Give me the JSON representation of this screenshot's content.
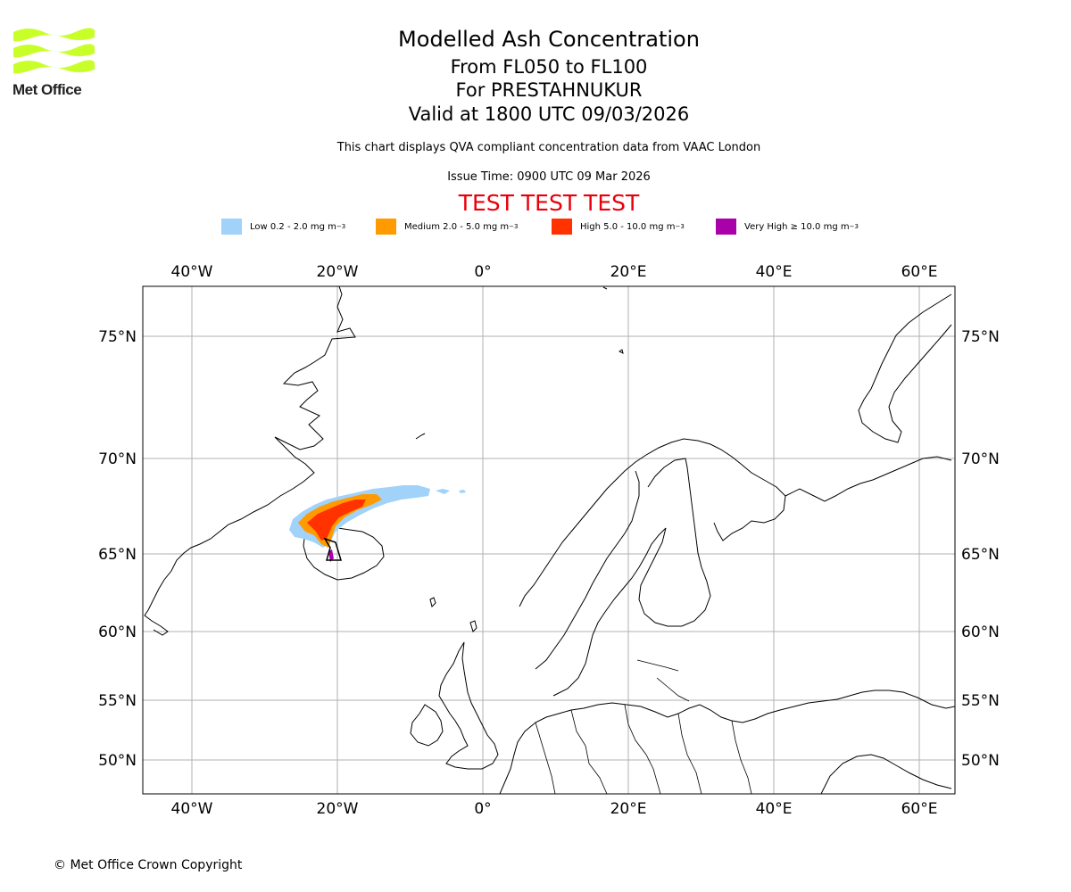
{
  "header": {
    "title": "Modelled Ash Concentration",
    "levels": "From FL050 to FL100",
    "volcano": "For PRESTAHNUKUR",
    "valid": "Valid at 1800 UTC 09/03/2026",
    "note": "This chart displays QVA compliant concentration data from VAAC London",
    "issue": "Issue Time: 0900 UTC 09 Mar 2026",
    "test_banner": "TEST TEST TEST"
  },
  "logo": {
    "brand": "Met Office",
    "color": "#c8ff28"
  },
  "legend": [
    {
      "label": "Low 0.2 - 2.0 mg m",
      "unit_exp": "−3",
      "color": "#a0d2fa"
    },
    {
      "label": "Medium 2.0 - 5.0 mg m",
      "unit_exp": "−3",
      "color": "#ff9b00"
    },
    {
      "label": "High 5.0 - 10.0 mg m",
      "unit_exp": "−3",
      "color": "#ff3200"
    },
    {
      "label": "Very High ≥ 10.0 mg m",
      "unit_exp": "−3",
      "color": "#aa00aa"
    }
  ],
  "map": {
    "lon_ticks": [
      {
        "label": "40°W",
        "value": -40
      },
      {
        "label": "20°W",
        "value": -20
      },
      {
        "label": "0°",
        "value": 0
      },
      {
        "label": "20°E",
        "value": 20
      },
      {
        "label": "40°E",
        "value": 40
      },
      {
        "label": "60°E",
        "value": 60
      }
    ],
    "lat_ticks": [
      {
        "label": "75°N",
        "value": 75
      },
      {
        "label": "70°N",
        "value": 70
      },
      {
        "label": "65°N",
        "value": 65
      },
      {
        "label": "60°N",
        "value": 60
      },
      {
        "label": "55°N",
        "value": 55
      },
      {
        "label": "50°N",
        "value": 50
      }
    ]
  },
  "footer": {
    "copyright": "© Met Office Crown Copyright"
  }
}
